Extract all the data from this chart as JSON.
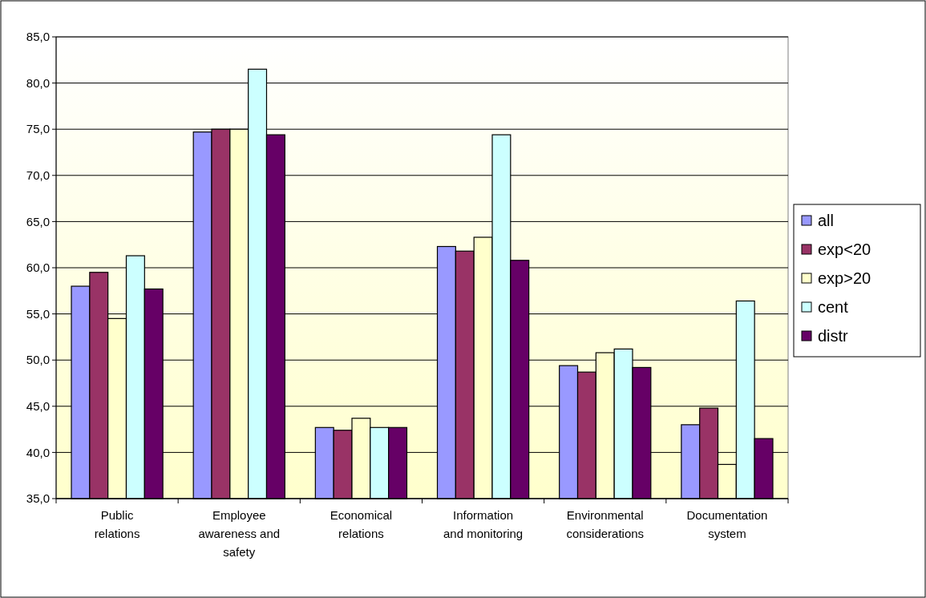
{
  "chart_data": {
    "type": "bar",
    "categories": [
      "Public relations",
      "Employee awareness and safety",
      "Economical relations",
      "Information and monitoring",
      "Environmental considerations",
      "Documentation system"
    ],
    "series": [
      {
        "name": "all",
        "color": "#9999ff",
        "values": [
          58.0,
          74.7,
          42.7,
          62.3,
          49.4,
          43.0
        ]
      },
      {
        "name": "exp<20",
        "color": "#993366",
        "values": [
          59.5,
          75.0,
          42.4,
          61.8,
          48.7,
          44.8
        ]
      },
      {
        "name": "exp>20",
        "color": "#ffffcc",
        "values": [
          54.5,
          75.0,
          43.7,
          63.3,
          50.8,
          38.7
        ]
      },
      {
        "name": "cent",
        "color": "#ccffff",
        "values": [
          61.3,
          81.5,
          42.7,
          74.4,
          51.2,
          56.4
        ]
      },
      {
        "name": "distr",
        "color": "#660066",
        "values": [
          57.7,
          74.4,
          42.7,
          60.8,
          49.2,
          41.5
        ]
      }
    ],
    "ylim": [
      35,
      85
    ],
    "yticks": [
      {
        "value": 35,
        "label": "35,0"
      },
      {
        "value": 40,
        "label": "40,0"
      },
      {
        "value": 45,
        "label": "45,0"
      },
      {
        "value": 50,
        "label": "50,0"
      },
      {
        "value": 55,
        "label": "55,0"
      },
      {
        "value": 60,
        "label": "60,0"
      },
      {
        "value": 65,
        "label": "65,0"
      },
      {
        "value": 70,
        "label": "70,0"
      },
      {
        "value": 75,
        "label": "75,0"
      },
      {
        "value": 80,
        "label": "80,0"
      },
      {
        "value": 85,
        "label": "85,0"
      }
    ],
    "grid": "y",
    "legend": "right"
  }
}
